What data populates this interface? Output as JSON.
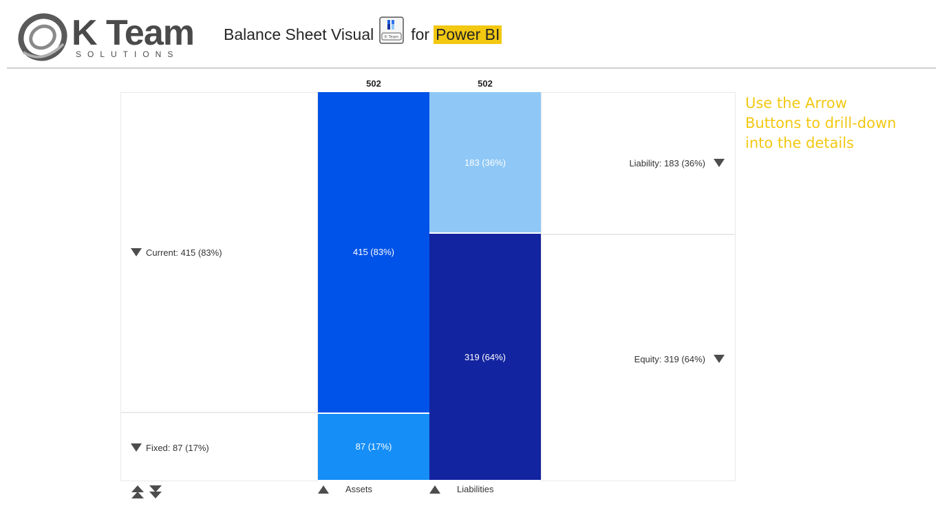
{
  "header": {
    "logo_word": "K Team",
    "logo_sub": "SOLUTIONS",
    "title_part1": "Balance Sheet Visual",
    "title_part2": "for",
    "title_highlight": "Power BI",
    "icon_caption": "K Team"
  },
  "hint": {
    "text": "Use the Arrow Buttons to drill-down into the details"
  },
  "colors": {
    "current": "#0053e8",
    "fixed": "#168ef7",
    "liability": "#8fc8f6",
    "equity": "#1324a0",
    "highlight": "#f2c811",
    "hint_text": "#f2c811"
  },
  "chart_data": {
    "type": "bar",
    "categories": [
      "Assets",
      "Liabilities"
    ],
    "totals": [
      "502",
      "502"
    ],
    "series": [
      {
        "column": "Assets",
        "name": "Current",
        "value": 415,
        "percent": 83,
        "label": "415 (83%)",
        "row_label": "Current: 415 (83%)"
      },
      {
        "column": "Assets",
        "name": "Fixed",
        "value": 87,
        "percent": 17,
        "label": "87 (17%)",
        "row_label": "Fixed: 87 (17%)"
      },
      {
        "column": "Liabilities",
        "name": "Liability",
        "value": 183,
        "percent": 36,
        "label": "183 (36%)",
        "row_label": "Liability: 183 (36%)"
      },
      {
        "column": "Liabilities",
        "name": "Equity",
        "value": 319,
        "percent": 64,
        "label": "319 (64%)",
        "row_label": "Equity: 319 (64%)"
      }
    ],
    "stacked": true
  }
}
